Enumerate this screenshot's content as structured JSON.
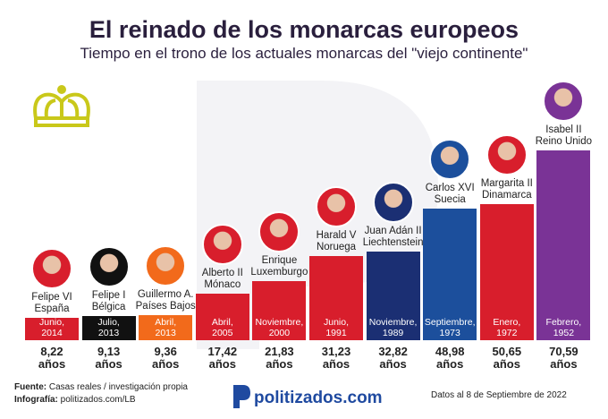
{
  "chart_data": {
    "type": "bar",
    "title": "El reinado de los monarcas europeos",
    "subtitle": "Tiempo en el trono de los actuales monarcas del \"viejo continente\"",
    "categories": [
      "Felipe VI",
      "Felipe I",
      "Guillermo A.",
      "Alberto II",
      "Enrique",
      "Harald V",
      "Juan Adán II",
      "Carlos XVI",
      "Margarita II",
      "Isabel II"
    ],
    "countries": [
      "España",
      "Bélgica",
      "Países Bajos",
      "Mónaco",
      "Luxemburgo",
      "Noruega",
      "Liechtenstein",
      "Suecia",
      "Dinamarca",
      "Reino Unido"
    ],
    "dates": [
      "Junio, 2014",
      "Julio, 2013",
      "Abril, 2013",
      "Abril, 2005",
      "Noviembre, 2000",
      "Junio, 1991",
      "Noviembre, 1989",
      "Septiembre, 1973",
      "Enero, 1972",
      "Febrero, 1952"
    ],
    "values": [
      8.22,
      9.13,
      9.36,
      17.42,
      21.83,
      31.23,
      32.82,
      48.98,
      50.65,
      70.59
    ],
    "value_labels": [
      "8,22 años",
      "9,13 años",
      "9,36 años",
      "17,42 años",
      "21,83 años",
      "31,23 años",
      "32,82 años",
      "48,98 años",
      "50,65 años",
      "70,59 años"
    ],
    "colors": [
      "#d81e2c",
      "#111111",
      "#f26a1b",
      "#d81e2c",
      "#d81e2c",
      "#d81e2c",
      "#1b2f73",
      "#1c4f9c",
      "#d81e2c",
      "#7a3396"
    ]
  },
  "footer": {
    "source_label": "Fuente:",
    "source": "Casas reales / investigación propia",
    "credit_label": "Infografía:",
    "credit": "politizados.com/LB",
    "logo": "politizados.com",
    "note": "Datos al 8 de Septiembre de 2022"
  }
}
